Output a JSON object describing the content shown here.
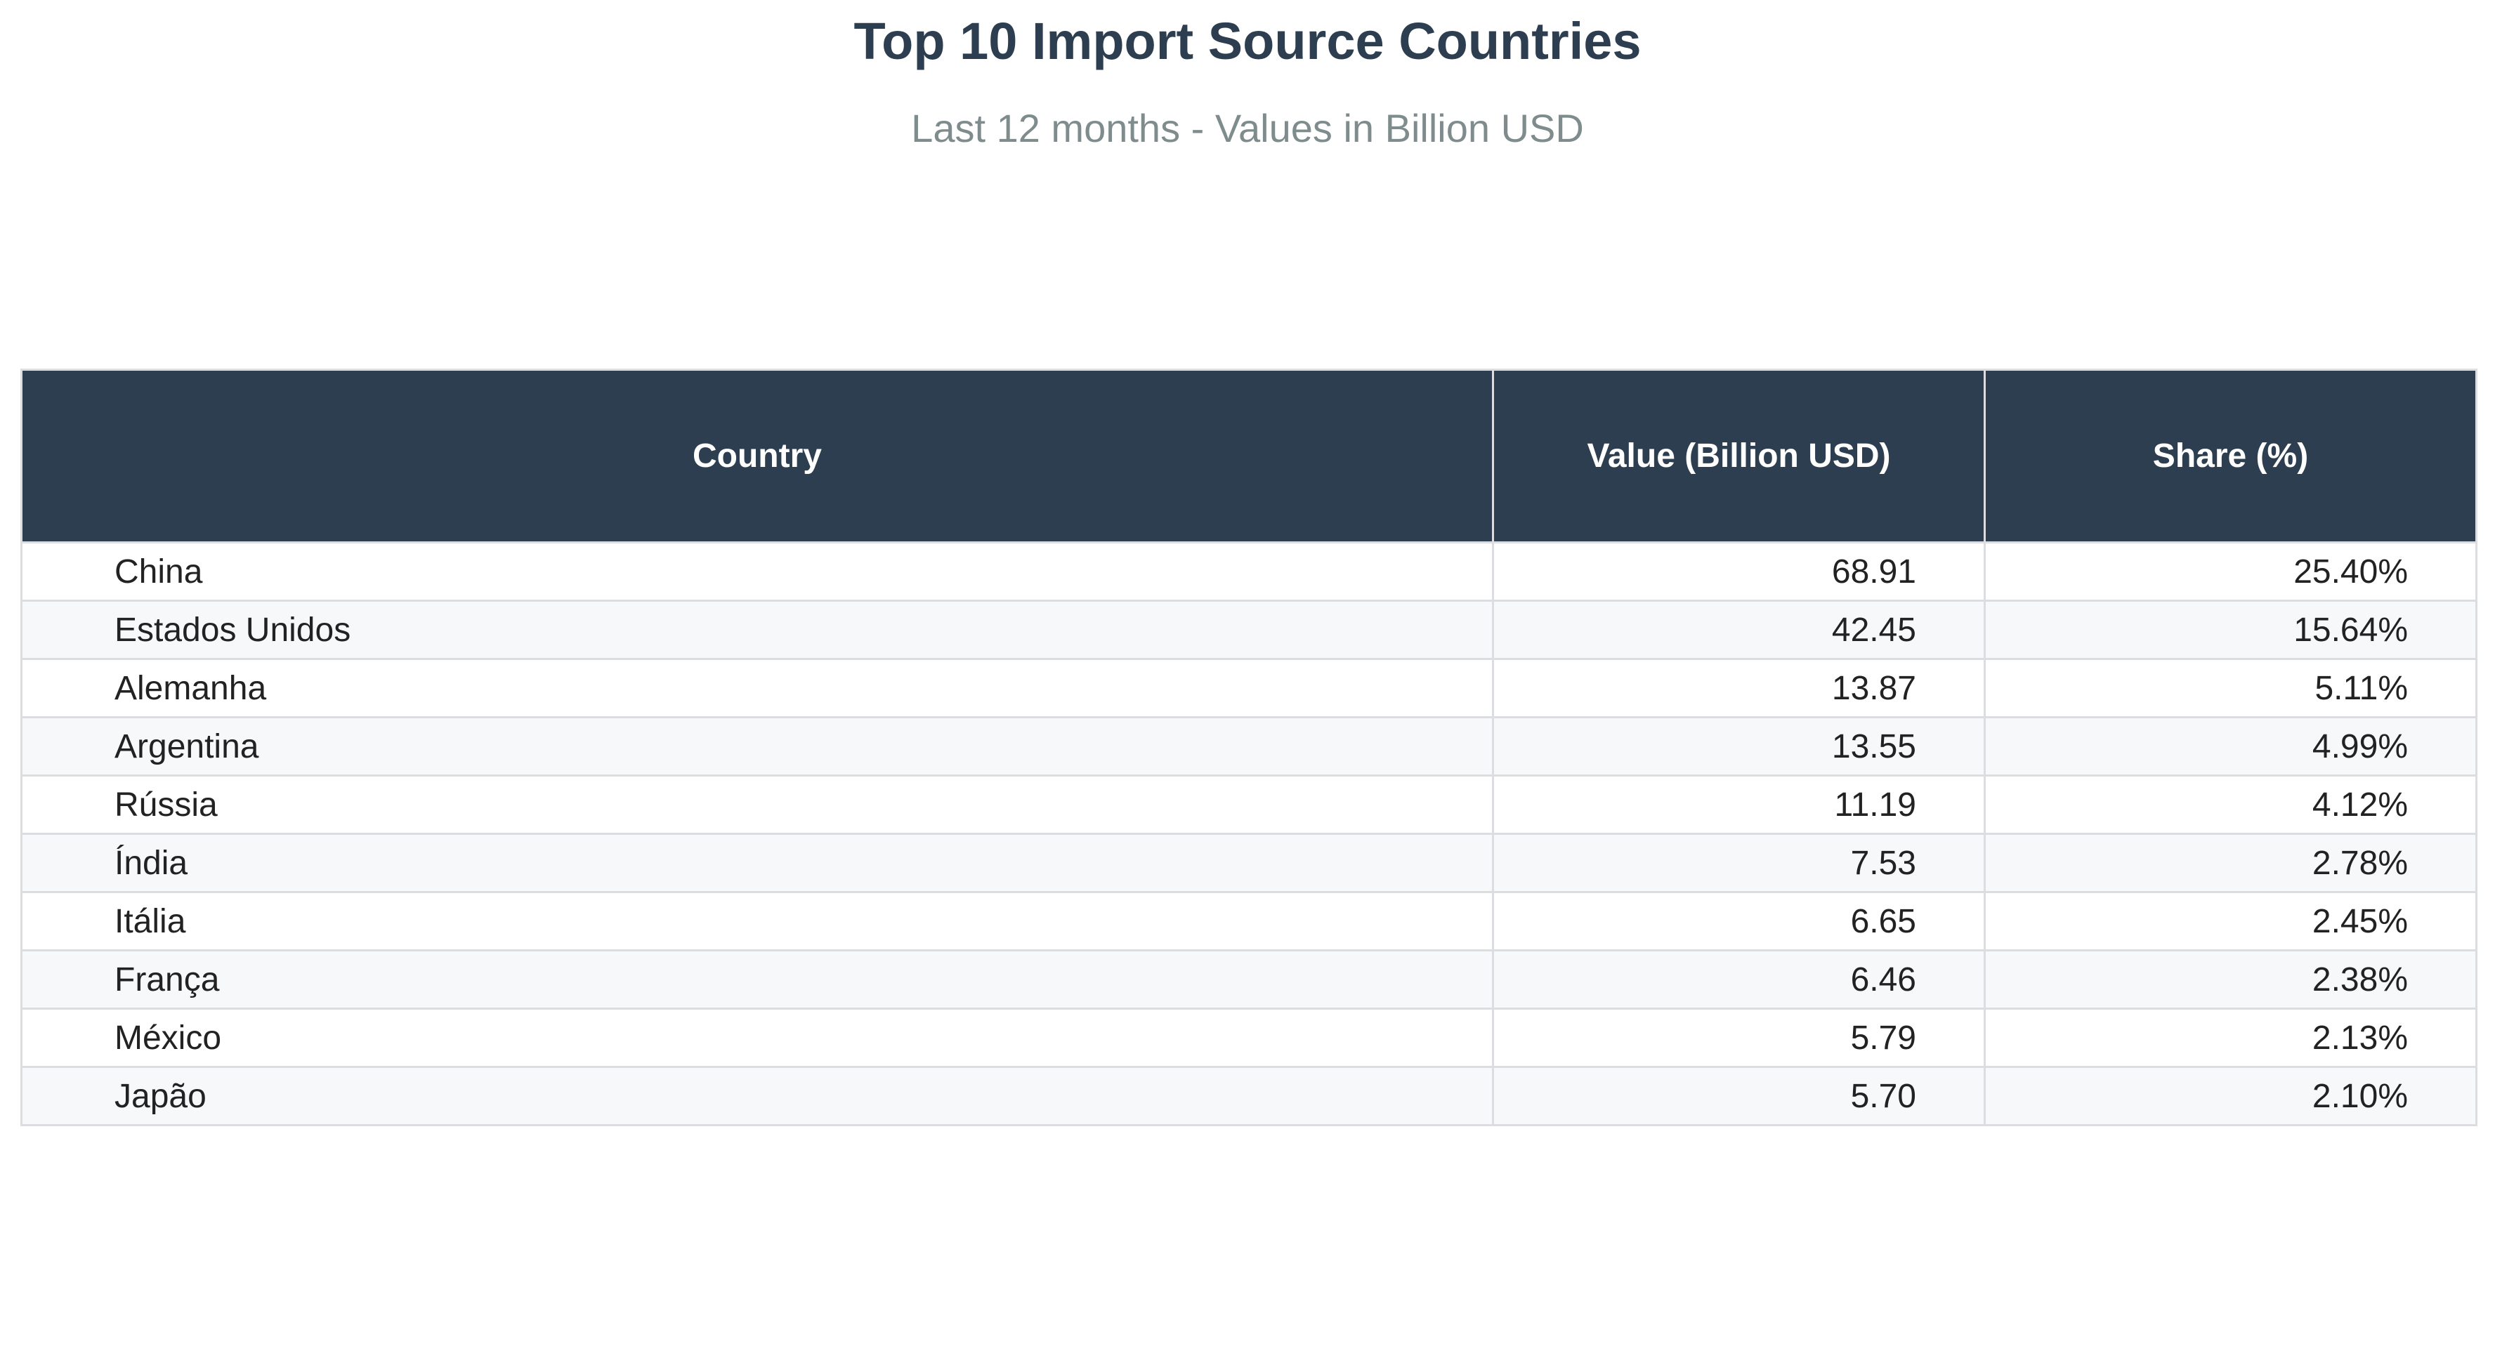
{
  "chart_data": {
    "type": "table",
    "title": "Top 10 Import Source Countries",
    "subtitle": "Last 12 months - Values in Billion USD",
    "columns": [
      "Country",
      "Value (Billion USD)",
      "Share (%)"
    ],
    "rows": [
      {
        "country": "China",
        "value": "68.91",
        "share": "25.40%"
      },
      {
        "country": "Estados Unidos",
        "value": "42.45",
        "share": "15.64%"
      },
      {
        "country": "Alemanha",
        "value": "13.87",
        "share": "5.11%"
      },
      {
        "country": "Argentina",
        "value": "13.55",
        "share": "4.99%"
      },
      {
        "country": "Rússia",
        "value": "11.19",
        "share": "4.12%"
      },
      {
        "country": "Índia",
        "value": "7.53",
        "share": "2.78%"
      },
      {
        "country": "Itália",
        "value": "6.65",
        "share": "2.45%"
      },
      {
        "country": "França",
        "value": "6.46",
        "share": "2.38%"
      },
      {
        "country": "México",
        "value": "5.79",
        "share": "2.13%"
      },
      {
        "country": "Japão",
        "value": "5.70",
        "share": "2.10%"
      }
    ],
    "colors": {
      "header_background": "#2c3e50",
      "header_text": "#ffffff",
      "title": "#2c3e50",
      "subtitle": "#7f8c8d",
      "row_alternate": "#f7f8fa",
      "grid": "#dcdde1"
    }
  }
}
